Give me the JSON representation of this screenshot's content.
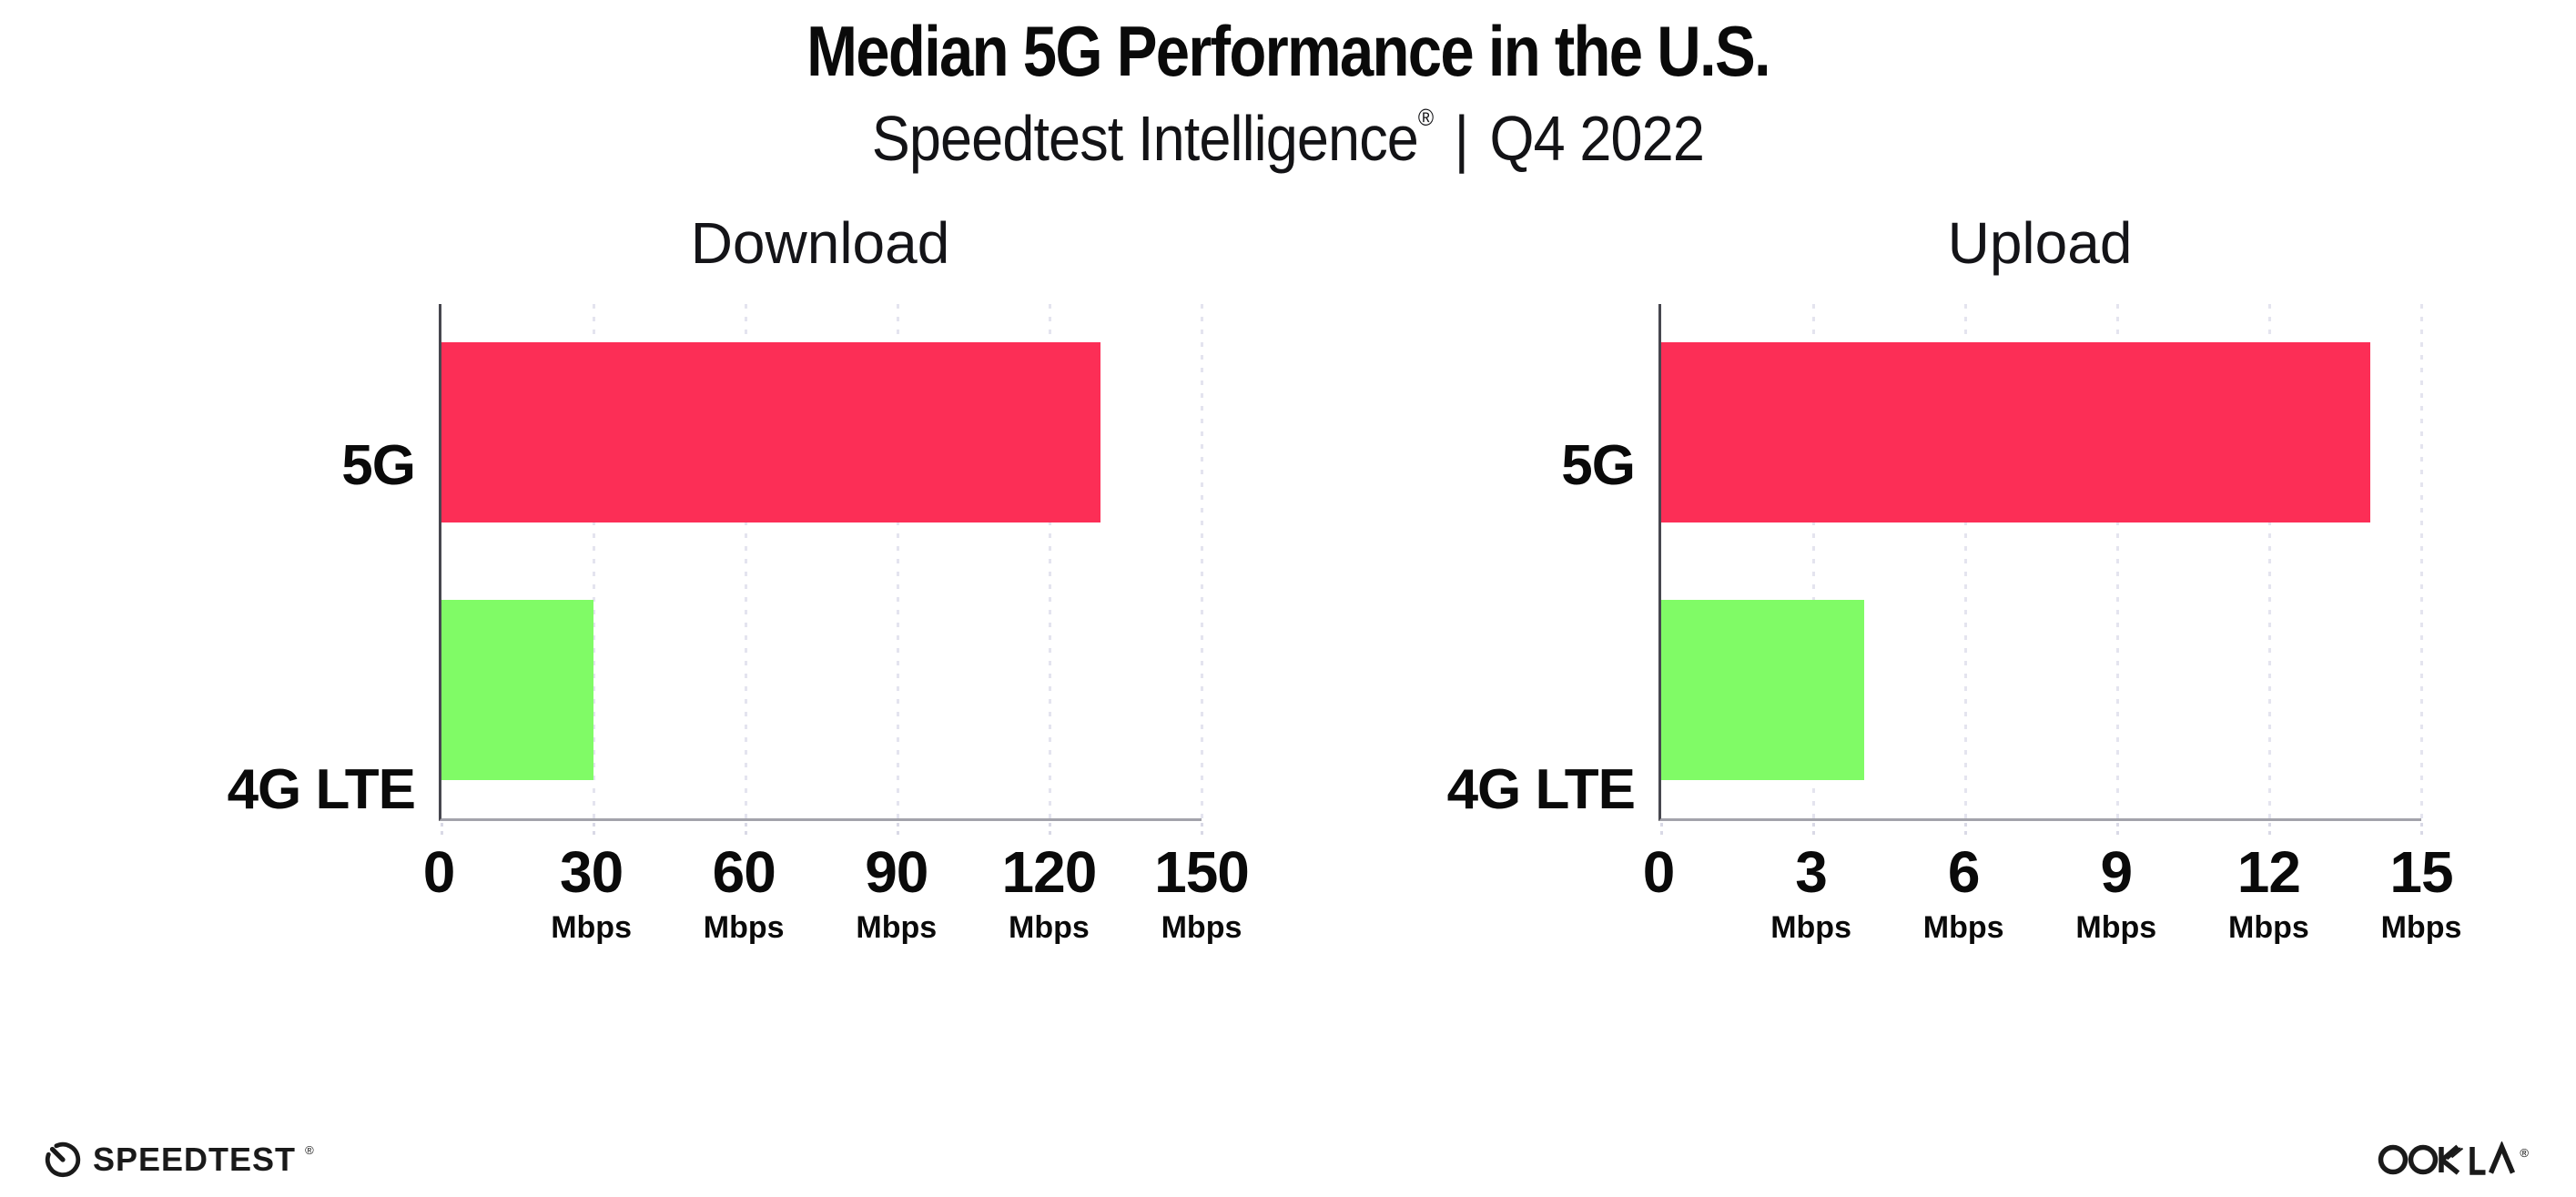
{
  "header": {
    "title": "Median 5G Performance in the U.S.",
    "subtitle_brand": "Speedtest Intelligence",
    "subtitle_reg": "®",
    "subtitle_divider": "|",
    "subtitle_period": "Q4 2022"
  },
  "chart_data": [
    {
      "type": "bar",
      "orientation": "horizontal",
      "title": "Download",
      "categories": [
        "5G",
        "4G LTE"
      ],
      "values": [
        130,
        30
      ],
      "unit": "Mbps",
      "tick_unit": "Mbps",
      "xlim": [
        0,
        150
      ],
      "xticks": [
        0,
        30,
        60,
        90,
        120,
        150
      ],
      "bar_colors": [
        "#FC2E56",
        "#80FB66"
      ],
      "grid": "dotted-vertical",
      "legend": "none"
    },
    {
      "type": "bar",
      "orientation": "horizontal",
      "title": "Upload",
      "categories": [
        "5G",
        "4G LTE"
      ],
      "values": [
        14,
        4
      ],
      "unit": "Mbps",
      "tick_unit": "Mbps",
      "xlim": [
        0,
        15
      ],
      "xticks": [
        0,
        3,
        6,
        9,
        12,
        15
      ],
      "bar_colors": [
        "#FC2E56",
        "#80FB66"
      ],
      "grid": "dotted-vertical",
      "legend": "none"
    }
  ],
  "colors": {
    "bar_5g": "#FC2E56",
    "bar_4g_lte": "#80FB66",
    "y_axis_line": "#47474F",
    "x_axis_line": "#A3A3AB",
    "gridline": "#E4E4EF",
    "text": "#0A0A0A"
  },
  "footer": {
    "speedtest_label": "SPEEDTEST",
    "speedtest_mark": "®",
    "ookla_label": "OOKLA",
    "ookla_mark": "®"
  }
}
